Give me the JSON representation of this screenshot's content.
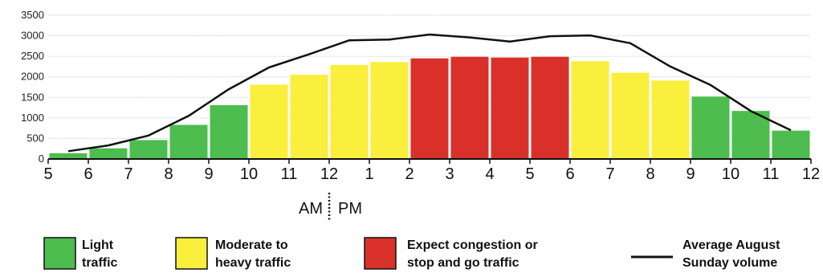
{
  "chart_data": {
    "type": "bar",
    "title": "",
    "xlabel": "",
    "ylabel": "",
    "ylim": [
      0,
      3500
    ],
    "yticks": [
      "0",
      "500",
      "1000",
      "1500",
      "2000",
      "2500",
      "3000",
      "3500"
    ],
    "x_tick_labels": [
      "5",
      "6",
      "7",
      "8",
      "9",
      "10",
      "11",
      "12",
      "1",
      "2",
      "3",
      "4",
      "5",
      "6",
      "7",
      "8",
      "9",
      "10",
      "11",
      "12"
    ],
    "am_label": "AM",
    "pm_label": "PM",
    "grid": true,
    "legend_position": "bottom",
    "categories": [
      "5-6",
      "6-7",
      "7-8",
      "8-9",
      "9-10",
      "10-11",
      "11-12",
      "12-1",
      "1-2",
      "2-3",
      "3-4",
      "4-5",
      "5-6",
      "6-7",
      "7-8",
      "8-9",
      "9-10",
      "10-11",
      "11-12"
    ],
    "series": [
      {
        "type": "bar",
        "values": [
          150,
          270,
          470,
          840,
          1320,
          1820,
          2060,
          2300,
          2370,
          2460,
          2500,
          2480,
          2500,
          2390,
          2110,
          1920,
          1530,
          1180,
          700
        ],
        "levels": [
          "light",
          "light",
          "light",
          "light",
          "light",
          "moderate",
          "moderate",
          "moderate",
          "moderate",
          "congestion",
          "congestion",
          "congestion",
          "congestion",
          "moderate",
          "moderate",
          "moderate",
          "light",
          "light",
          "light"
        ]
      },
      {
        "type": "line",
        "name": "Average August Sunday volume",
        "values": [
          190,
          330,
          570,
          1050,
          1700,
          2230,
          2550,
          2890,
          2910,
          3030,
          2960,
          2860,
          2990,
          3010,
          2820,
          2250,
          1800,
          1170,
          700
        ]
      }
    ],
    "colors": {
      "light": "#4cbd4e",
      "moderate": "#f9ef3c",
      "congestion": "#d9312a",
      "line": "#111111",
      "grid": "#cccccc"
    },
    "legend": [
      {
        "key": "light",
        "lines": [
          "Light",
          "traffic"
        ]
      },
      {
        "key": "moderate",
        "lines": [
          "Moderate to",
          "heavy traffic"
        ]
      },
      {
        "key": "congestion",
        "lines": [
          "Expect congestion or",
          "stop and go traffic"
        ]
      },
      {
        "key": "line",
        "lines": [
          "Average August",
          "Sunday volume"
        ]
      }
    ]
  }
}
